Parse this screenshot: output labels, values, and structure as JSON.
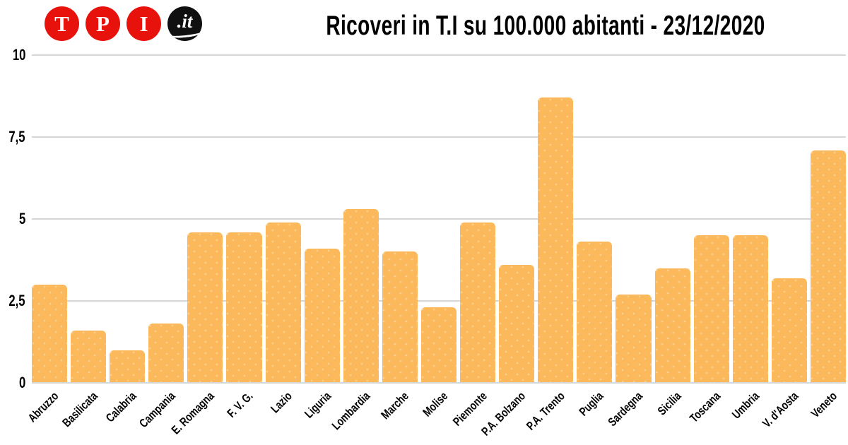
{
  "logo": {
    "name": "TPI.it",
    "letters": [
      "T",
      "P",
      "I"
    ],
    "suffix": ".it",
    "circle_color": "#e8120c",
    "suffix_circle_color": "#101010",
    "letter_color": "#ffffff"
  },
  "title": "Ricoveri in T.I su 100.000 abitanti - 23/12/2020",
  "chart_data": {
    "type": "bar",
    "title": "Ricoveri in T.I su 100.000 abitanti - 23/12/2020",
    "categories": [
      "Abruzzo",
      "Basilicata",
      "Calabria",
      "Campania",
      "E. Romagna",
      "F. V. G.",
      "Lazio",
      "Liguria",
      "Lombardia",
      "Marche",
      "Molise",
      "Piemonte",
      "P.A. Bolzano",
      "P.A. Trento",
      "Puglia",
      "Sardegna",
      "Sicilia",
      "Toscana",
      "Umbria",
      "V. d'Aosta",
      "Veneto"
    ],
    "values": [
      3.0,
      1.6,
      1.0,
      1.8,
      4.6,
      4.6,
      4.9,
      4.1,
      5.3,
      4.0,
      2.3,
      4.9,
      3.6,
      8.7,
      4.3,
      2.7,
      3.5,
      4.5,
      4.5,
      3.2,
      7.1
    ],
    "xlabel": "",
    "ylabel": "",
    "ylim": [
      0,
      10
    ],
    "yticks": [
      {
        "value": 10,
        "label": "10"
      },
      {
        "value": 7.5,
        "label": "7,5"
      },
      {
        "value": 5,
        "label": "5"
      },
      {
        "value": 2.5,
        "label": "2,5"
      },
      {
        "value": 0,
        "label": "0"
      }
    ],
    "grid": true,
    "legend": false,
    "bar_color": "#fcb95b",
    "grid_color": "#d6d6d6",
    "text_color": "#000000"
  }
}
